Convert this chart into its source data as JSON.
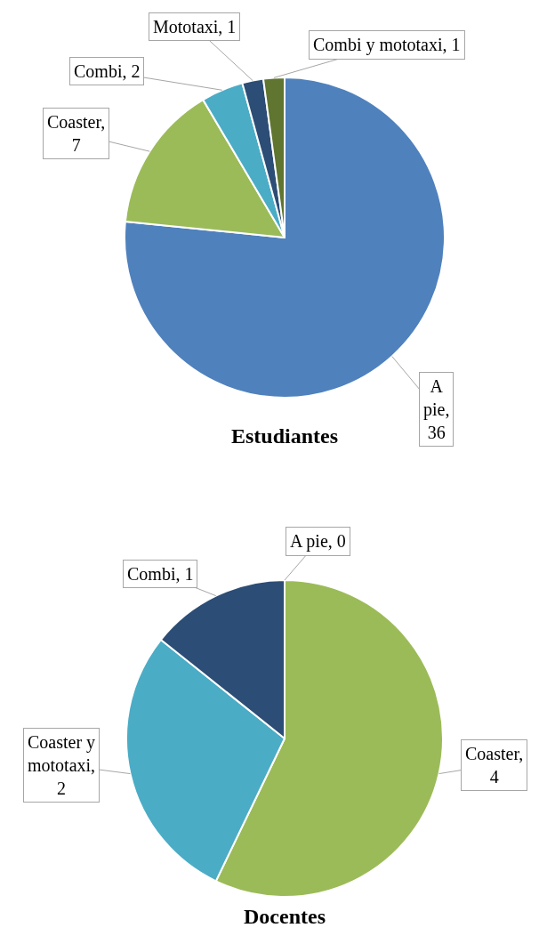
{
  "chart_data": [
    {
      "type": "pie",
      "title": "Estudiantes",
      "values": [
        36,
        7,
        2,
        1,
        1
      ],
      "colors": [
        "#4f81bd",
        "#9bbb59",
        "#4bacc6",
        "#2c4d75",
        "#5f7530"
      ],
      "value_labels": [
        "A pie, 36",
        "Coaster, 7",
        "Combi, 2",
        "Mototaxi, 1",
        "Combi y mototaxi, 1"
      ],
      "legend": false
    },
    {
      "type": "pie",
      "title": "Docentes",
      "values": [
        0,
        4,
        2,
        1
      ],
      "colors": [
        "#4f81bd",
        "#9bbb59",
        "#4bacc6",
        "#2c4d75"
      ],
      "value_labels": [
        "A pie, 0",
        "Coaster, 4",
        "Coaster y mototaxi, 2",
        "Combi, 1"
      ],
      "legend": false
    }
  ]
}
